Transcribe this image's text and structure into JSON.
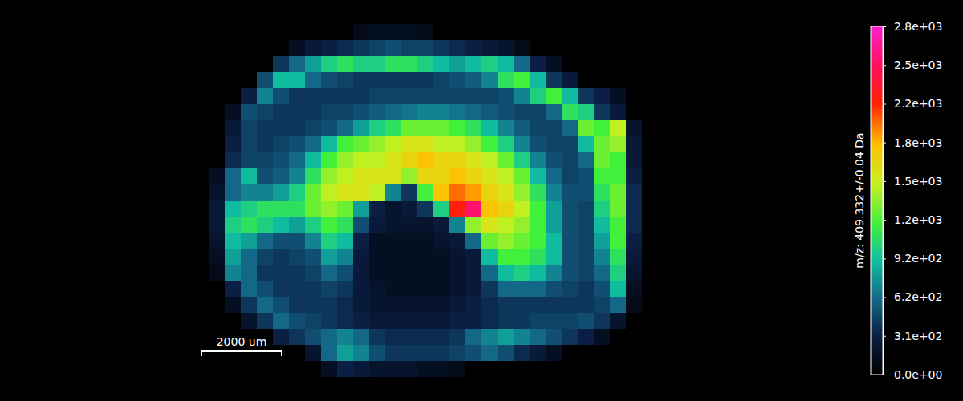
{
  "chart_data": {
    "type": "heatmap",
    "cells": [
      [
        0,
        0,
        0,
        0,
        0,
        0,
        0,
        0,
        0,
        100,
        150,
        150,
        150,
        100,
        0,
        0,
        0,
        0,
        0,
        0,
        0,
        0,
        0,
        0,
        0,
        0,
        0,
        0
      ],
      [
        0,
        0,
        0,
        0,
        0,
        150,
        250,
        300,
        350,
        400,
        450,
        500,
        450,
        450,
        400,
        350,
        300,
        250,
        200,
        100,
        0,
        0,
        0,
        0,
        0,
        0,
        0,
        0
      ],
      [
        0,
        0,
        0,
        0,
        400,
        600,
        800,
        1000,
        1100,
        1000,
        1000,
        1100,
        1100,
        1000,
        900,
        800,
        900,
        1000,
        900,
        600,
        300,
        150,
        0,
        0,
        0,
        0,
        0,
        0
      ],
      [
        0,
        0,
        0,
        500,
        900,
        900,
        600,
        500,
        450,
        400,
        400,
        400,
        400,
        400,
        450,
        500,
        550,
        700,
        1100,
        1200,
        900,
        400,
        250,
        0,
        0,
        0,
        0,
        0
      ],
      [
        0,
        0,
        300,
        700,
        500,
        400,
        400,
        400,
        400,
        400,
        450,
        450,
        450,
        450,
        450,
        450,
        450,
        450,
        500,
        700,
        1000,
        1200,
        900,
        400,
        300,
        150,
        0,
        0
      ],
      [
        0,
        150,
        500,
        450,
        400,
        400,
        400,
        450,
        450,
        500,
        550,
        600,
        650,
        700,
        700,
        650,
        600,
        550,
        500,
        450,
        450,
        600,
        1100,
        1000,
        400,
        250,
        0,
        0
      ],
      [
        0,
        250,
        450,
        400,
        400,
        400,
        450,
        500,
        600,
        800,
        1000,
        1100,
        1300,
        1300,
        1300,
        1200,
        1100,
        900,
        700,
        550,
        450,
        450,
        600,
        1300,
        1200,
        1500,
        200,
        0
      ],
      [
        0,
        300,
        450,
        400,
        450,
        500,
        600,
        900,
        1200,
        1300,
        1400,
        1500,
        1600,
        1600,
        1500,
        1500,
        1400,
        1200,
        1000,
        700,
        500,
        450,
        450,
        900,
        1300,
        1400,
        250,
        0
      ],
      [
        0,
        350,
        450,
        450,
        500,
        600,
        900,
        1200,
        1400,
        1500,
        1500,
        1600,
        1700,
        1800,
        1700,
        1700,
        1600,
        1500,
        1300,
        1000,
        700,
        500,
        450,
        600,
        1300,
        1200,
        250,
        0
      ],
      [
        150,
        600,
        900,
        500,
        550,
        700,
        1100,
        1400,
        1500,
        1600,
        1600,
        1600,
        1400,
        1700,
        1700,
        1800,
        1700,
        1600,
        1500,
        1300,
        900,
        600,
        450,
        500,
        1200,
        1200,
        300,
        0
      ],
      [
        200,
        600,
        700,
        700,
        800,
        1000,
        1300,
        1500,
        1600,
        1600,
        1500,
        700,
        400,
        1200,
        1800,
        2000,
        1900,
        1700,
        1600,
        1400,
        1100,
        700,
        500,
        500,
        1100,
        1300,
        350,
        0
      ],
      [
        250,
        900,
        1000,
        1100,
        1100,
        1100,
        1300,
        1400,
        1300,
        800,
        300,
        200,
        250,
        400,
        1000,
        2200,
        2500,
        1800,
        1700,
        1500,
        1200,
        800,
        500,
        450,
        1000,
        1300,
        350,
        0
      ],
      [
        250,
        1000,
        1100,
        1000,
        900,
        800,
        1000,
        1200,
        1100,
        500,
        250,
        200,
        200,
        200,
        250,
        700,
        1400,
        1600,
        1500,
        1400,
        1200,
        800,
        500,
        450,
        900,
        1200,
        350,
        0
      ],
      [
        200,
        900,
        800,
        600,
        500,
        500,
        700,
        1000,
        900,
        300,
        150,
        150,
        150,
        150,
        200,
        250,
        600,
        1300,
        1400,
        1300,
        1200,
        900,
        500,
        450,
        800,
        1200,
        300,
        0
      ],
      [
        150,
        800,
        600,
        450,
        400,
        450,
        500,
        800,
        700,
        250,
        150,
        150,
        150,
        150,
        150,
        200,
        250,
        900,
        1200,
        1200,
        1100,
        900,
        500,
        450,
        700,
        1100,
        250,
        0
      ],
      [
        100,
        700,
        600,
        400,
        400,
        400,
        450,
        600,
        500,
        250,
        150,
        150,
        150,
        150,
        150,
        200,
        250,
        600,
        900,
        1000,
        900,
        700,
        500,
        450,
        600,
        1000,
        200,
        0
      ],
      [
        0,
        300,
        600,
        500,
        400,
        400,
        400,
        450,
        400,
        250,
        200,
        150,
        150,
        150,
        150,
        200,
        250,
        400,
        600,
        600,
        600,
        500,
        450,
        400,
        500,
        900,
        150,
        0
      ],
      [
        0,
        150,
        400,
        600,
        500,
        400,
        400,
        400,
        350,
        250,
        200,
        200,
        200,
        200,
        200,
        250,
        300,
        350,
        400,
        400,
        400,
        400,
        400,
        400,
        450,
        600,
        100,
        0
      ],
      [
        0,
        0,
        200,
        400,
        600,
        500,
        450,
        400,
        350,
        300,
        250,
        250,
        250,
        250,
        250,
        300,
        300,
        350,
        400,
        400,
        450,
        450,
        450,
        500,
        400,
        200,
        0,
        0
      ],
      [
        0,
        0,
        0,
        0,
        300,
        400,
        500,
        600,
        700,
        600,
        400,
        350,
        350,
        350,
        350,
        400,
        600,
        700,
        800,
        700,
        600,
        500,
        400,
        300,
        150,
        0,
        0,
        0
      ],
      [
        0,
        0,
        0,
        0,
        0,
        0,
        200,
        600,
        800,
        700,
        500,
        400,
        400,
        400,
        400,
        450,
        500,
        600,
        500,
        350,
        250,
        150,
        0,
        0,
        0,
        0,
        0,
        0
      ],
      [
        0,
        0,
        0,
        0,
        0,
        0,
        0,
        150,
        300,
        250,
        200,
        200,
        200,
        150,
        150,
        100,
        0,
        0,
        0,
        0,
        0,
        0,
        0,
        0,
        0,
        0,
        0,
        0
      ]
    ],
    "cell_size_um": 400,
    "colorbar": {
      "label": "m/z: 409.332+/-0.04 Da",
      "range": [
        0,
        2770
      ],
      "ticks": [
        {
          "value": 0,
          "label": "0.0e+00"
        },
        {
          "value": 308,
          "label": "3.1e+02"
        },
        {
          "value": 616,
          "label": "6.2e+02"
        },
        {
          "value": 923,
          "label": "9.2e+02"
        },
        {
          "value": 1231,
          "label": "1.2e+03"
        },
        {
          "value": 1539,
          "label": "1.5e+03"
        },
        {
          "value": 1847,
          "label": "1.8e+03"
        },
        {
          "value": 2154,
          "label": "2.2e+03"
        },
        {
          "value": 2462,
          "label": "2.5e+03"
        },
        {
          "value": 2770,
          "label": "2.8e+03"
        }
      ]
    },
    "scale_bar": {
      "length_um": 2000,
      "label": "2000 um"
    }
  }
}
